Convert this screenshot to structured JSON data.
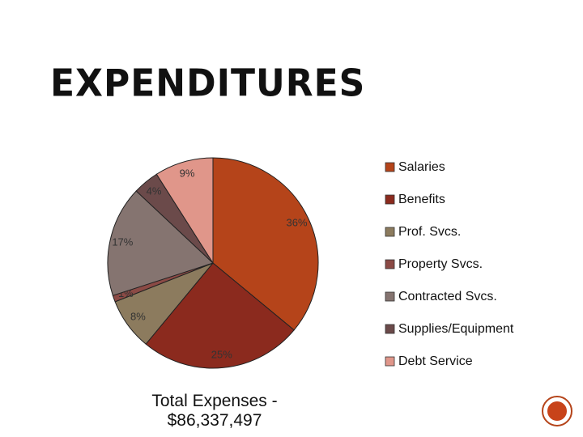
{
  "chart_data": {
    "type": "pie",
    "title": "EXPENDITURES",
    "subtitle": "Total Expenses - $86,337,497",
    "categories": [
      "Salaries",
      "Benefits",
      "Prof. Svcs.",
      "Property Svcs.",
      "Contracted Svcs.",
      "Supplies/Equipment",
      "Debt Service"
    ],
    "values": [
      36,
      25,
      8,
      1,
      17,
      4,
      9
    ],
    "value_labels": [
      "36%",
      "25%",
      "8%",
      "1%",
      "17%",
      "4%",
      "9%"
    ],
    "colors": [
      "#b5441a",
      "#8b2a1e",
      "#8c7b5e",
      "#8b4a45",
      "#857470",
      "#6b4a4a",
      "#e0968a"
    ],
    "legend": "right"
  }
}
